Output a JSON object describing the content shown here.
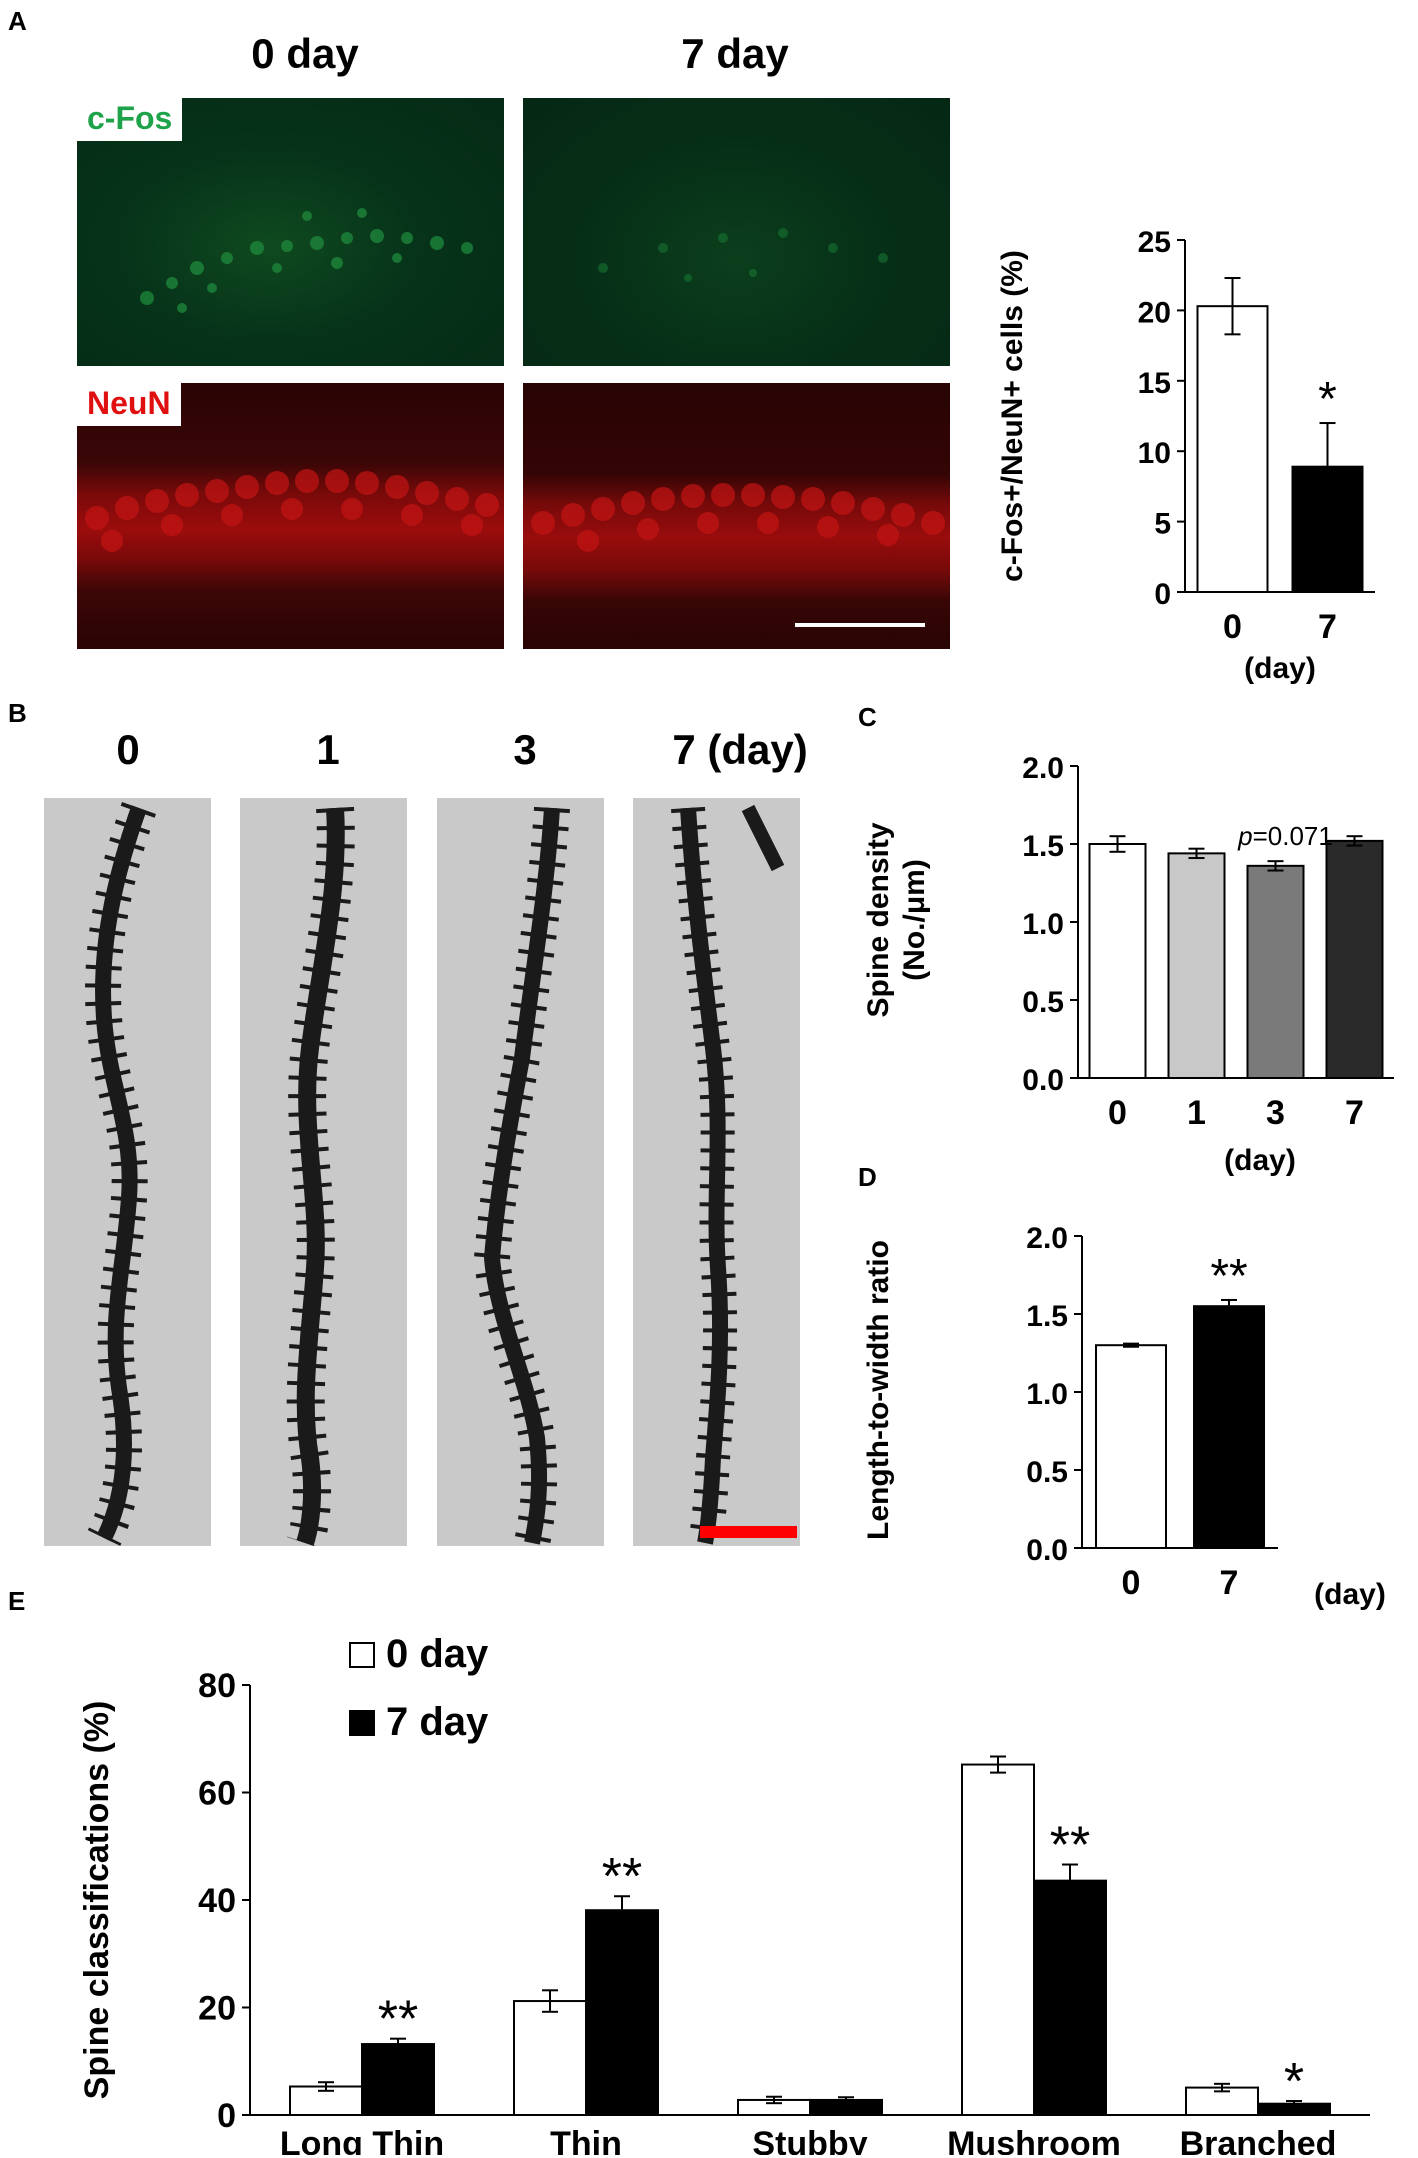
{
  "panels": {
    "A": {
      "letter": "A",
      "col_labels": [
        "0 day",
        "7 day"
      ],
      "stain_labels": [
        "c-Fos",
        "NeuN"
      ],
      "stain_colors": {
        "cfos": "#1fa34a",
        "neun": "#e01010"
      }
    },
    "B": {
      "letter": "B",
      "col_labels": [
        "0",
        "1",
        "3",
        "7 (day)"
      ]
    },
    "C": {
      "letter": "C"
    },
    "D": {
      "letter": "D"
    },
    "E": {
      "letter": "E"
    }
  },
  "colors": {
    "white_bar": "#ffffff",
    "black_bar": "#000000",
    "gray1": "#c8c8c8",
    "gray2": "#7a7a7a",
    "gray3": "#2a2a2a",
    "scalebar_white": "#ffffff",
    "scalebar_red": "#ff0000"
  },
  "chart_data": [
    {
      "id": "A",
      "type": "bar",
      "categories": [
        "0",
        "7"
      ],
      "values": [
        20.3,
        8.9
      ],
      "errors": [
        2.0,
        3.1
      ],
      "bar_colors": [
        "#ffffff",
        "#000000"
      ],
      "ylabel": "c-Fos+/NeuN+ cells (%)",
      "xlabel": "(day)",
      "ylim": [
        0,
        25
      ],
      "yticks": [
        "0",
        "5",
        "10",
        "15",
        "20",
        "25"
      ],
      "annotations": [
        {
          "category": "7",
          "text": "*"
        }
      ]
    },
    {
      "id": "C",
      "type": "bar",
      "categories": [
        "0",
        "1",
        "3",
        "7"
      ],
      "values": [
        1.5,
        1.44,
        1.36,
        1.52
      ],
      "errors": [
        0.05,
        0.03,
        0.03,
        0.03
      ],
      "bar_colors": [
        "#ffffff",
        "#c8c8c8",
        "#7a7a7a",
        "#2a2a2a"
      ],
      "ylabel": "Spine density (No./μm)",
      "xlabel": "(day)",
      "ylim": [
        0,
        2.0
      ],
      "yticks": [
        "0.0",
        "0.5",
        "1.0",
        "1.5",
        "2.0"
      ],
      "annotations": [
        {
          "category": "3",
          "text_italic": "p",
          "text": "=0.071"
        }
      ]
    },
    {
      "id": "D",
      "type": "bar",
      "categories": [
        "0",
        "7"
      ],
      "values": [
        1.3,
        1.55
      ],
      "errors": [
        0.01,
        0.04
      ],
      "bar_colors": [
        "#ffffff",
        "#000000"
      ],
      "ylabel": "Length-to-width ratio",
      "xlabel": "(day)",
      "ylim": [
        0,
        2.0
      ],
      "yticks": [
        "0.0",
        "0.5",
        "1.0",
        "1.5",
        "2.0"
      ],
      "annotations": [
        {
          "category": "7",
          "text": "**"
        }
      ]
    },
    {
      "id": "E",
      "type": "bar",
      "categories": [
        "Long Thin",
        "Thin",
        "Stubby",
        "Mushroom",
        "Branched"
      ],
      "series": [
        {
          "name": "0 day",
          "values": [
            5.3,
            21.2,
            2.8,
            65.2,
            5.1
          ],
          "errors": [
            0.8,
            2.0,
            0.6,
            1.5,
            0.7
          ],
          "color": "#ffffff"
        },
        {
          "name": "7 day",
          "values": [
            13.2,
            38.1,
            2.8,
            43.6,
            2.1
          ],
          "errors": [
            1.0,
            2.6,
            0.5,
            3.0,
            0.5
          ],
          "color": "#000000"
        }
      ],
      "ylabel": "Spine classifications (%)",
      "ylim": [
        0,
        80
      ],
      "yticks": [
        "0",
        "20",
        "40",
        "60",
        "80"
      ],
      "legend": "top-left",
      "annotations": [
        {
          "category": "Long Thin",
          "series": "7 day",
          "text": "**"
        },
        {
          "category": "Thin",
          "series": "7 day",
          "text": "**"
        },
        {
          "category": "Mushroom",
          "series": "7 day",
          "text": "**"
        },
        {
          "category": "Branched",
          "series": "7 day",
          "text": "*"
        }
      ]
    }
  ]
}
